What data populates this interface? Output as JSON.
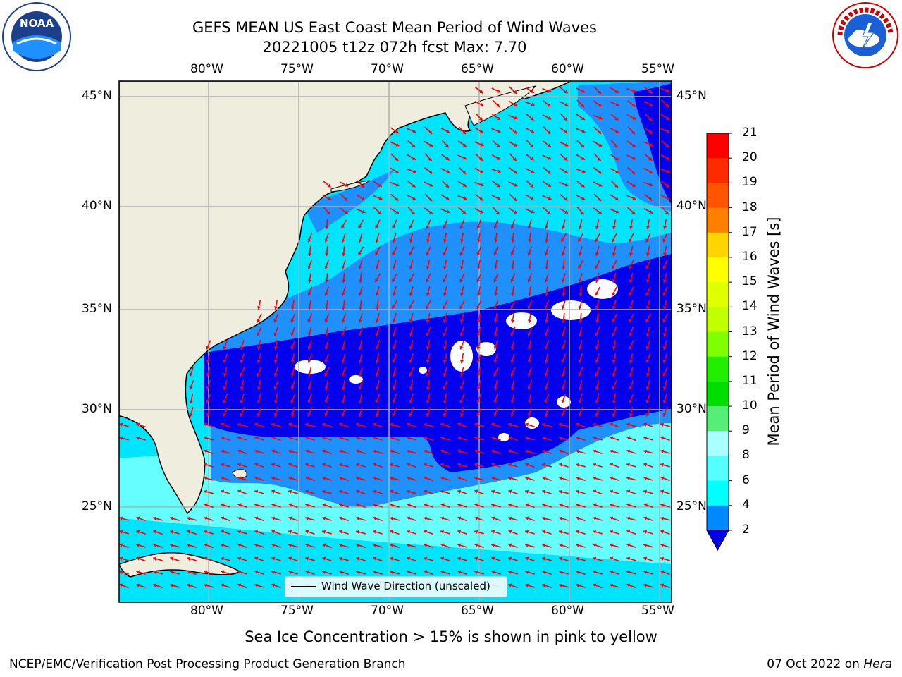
{
  "header": {
    "title_line1": "GEFS MEAN US East Coast Mean Period of Wind Waves",
    "title_line2": "20221005 t12z 072h fcst   Max: 7.70"
  },
  "logos": {
    "noaa": {
      "text": "NOAA",
      "ring_text": "NATIONAL OCEANIC AND ATMOSPHERIC ADMINISTRATION · U.S. DEPARTMENT OF COMMERCE"
    },
    "nws": {
      "ring_text": "NATIONAL WEATHER SERVICE"
    }
  },
  "axes": {
    "lon_labels": [
      "80°W",
      "75°W",
      "70°W",
      "65°W",
      "60°W",
      "55°W"
    ],
    "lat_labels": [
      "45°N",
      "40°N",
      "35°N",
      "30°N",
      "25°N"
    ]
  },
  "legend": {
    "label": "Wind Wave Direction (unscaled)"
  },
  "colorbar": {
    "label": "Mean Period of Wind Waves [s]",
    "ticks": [
      "21",
      "20",
      "19",
      "18",
      "17",
      "16",
      "15",
      "14",
      "13",
      "12",
      "11",
      "10",
      "9",
      "8",
      "6",
      "4",
      "2"
    ],
    "colors_top_to_bottom": [
      "#ff0000",
      "#ff2a00",
      "#ff5500",
      "#ff8000",
      "#ffaa00",
      "#ffd400",
      "#ffff00",
      "#e0ff00",
      "#c2ff00",
      "#80ff00",
      "#22ee00",
      "#00dd00",
      "#55ee77",
      "#88ffcc",
      "#aaffff",
      "#55ffff",
      "#00ffff",
      "#0088ff"
    ],
    "extend_color": "#0000ee"
  },
  "map_colors": {
    "land": "#efeddd",
    "period_2_4": "#1e90ff",
    "period_4_6": "#00e5ff",
    "period_6_8": "#66ffff",
    "below_2": "#0000ee",
    "arrow": "#ff0000",
    "grid": "#b0b0b0"
  },
  "footer": {
    "sea_ice_note": "Sea Ice Concentration > 15% is shown in pink to yellow",
    "producer": "NCEP/EMC/Verification Post Processing Product Generation Branch",
    "date": "07 Oct 2022 on ",
    "machine": "Hera"
  }
}
